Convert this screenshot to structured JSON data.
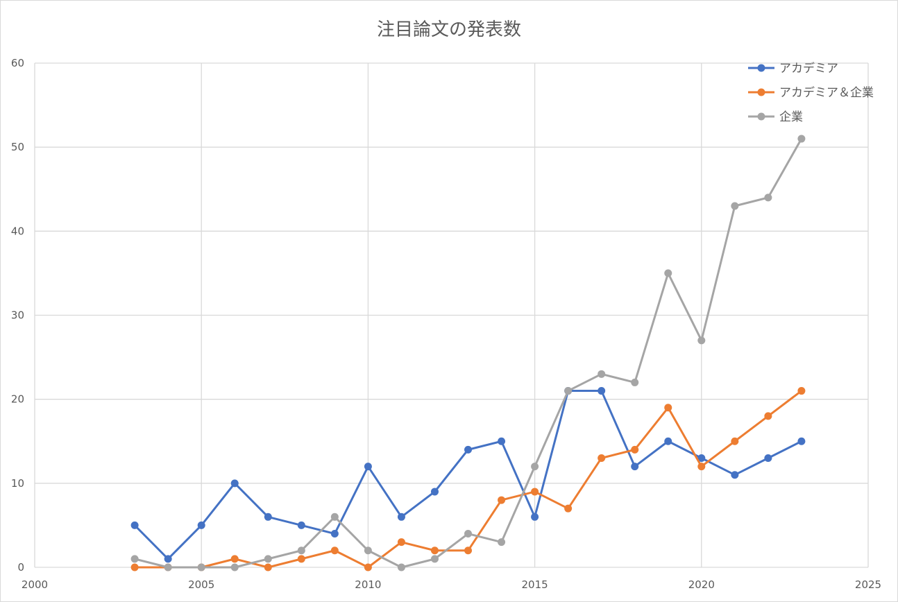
{
  "chart_data": {
    "type": "scatter",
    "title": "注目論文の発表数",
    "xlabel": "",
    "ylabel": "",
    "xlim": [
      2000,
      2025
    ],
    "ylim": [
      0,
      60
    ],
    "x_ticks": [
      2000,
      2005,
      2010,
      2015,
      2020,
      2025
    ],
    "y_ticks": [
      0,
      10,
      20,
      30,
      40,
      50,
      60
    ],
    "grid": true,
    "legend_position": "top-right",
    "x": [
      2003,
      2004,
      2005,
      2006,
      2007,
      2008,
      2009,
      2010,
      2011,
      2012,
      2013,
      2014,
      2015,
      2016,
      2017,
      2018,
      2019,
      2020,
      2021,
      2022,
      2023
    ],
    "series": [
      {
        "name": "アカデミア",
        "color": "#4472c4",
        "values": [
          5,
          1,
          5,
          10,
          6,
          5,
          4,
          12,
          6,
          9,
          14,
          15,
          6,
          21,
          21,
          12,
          15,
          13,
          11,
          13,
          15
        ]
      },
      {
        "name": "アカデミア＆企業",
        "color": "#ed7d31",
        "values": [
          0,
          0,
          0,
          1,
          0,
          1,
          2,
          0,
          3,
          2,
          2,
          8,
          9,
          7,
          13,
          14,
          19,
          12,
          15,
          18,
          21
        ]
      },
      {
        "name": "企業",
        "color": "#a5a5a5",
        "values": [
          1,
          0,
          0,
          0,
          1,
          2,
          6,
          2,
          0,
          1,
          4,
          3,
          12,
          21,
          23,
          22,
          35,
          27,
          43,
          44,
          51
        ]
      }
    ]
  }
}
